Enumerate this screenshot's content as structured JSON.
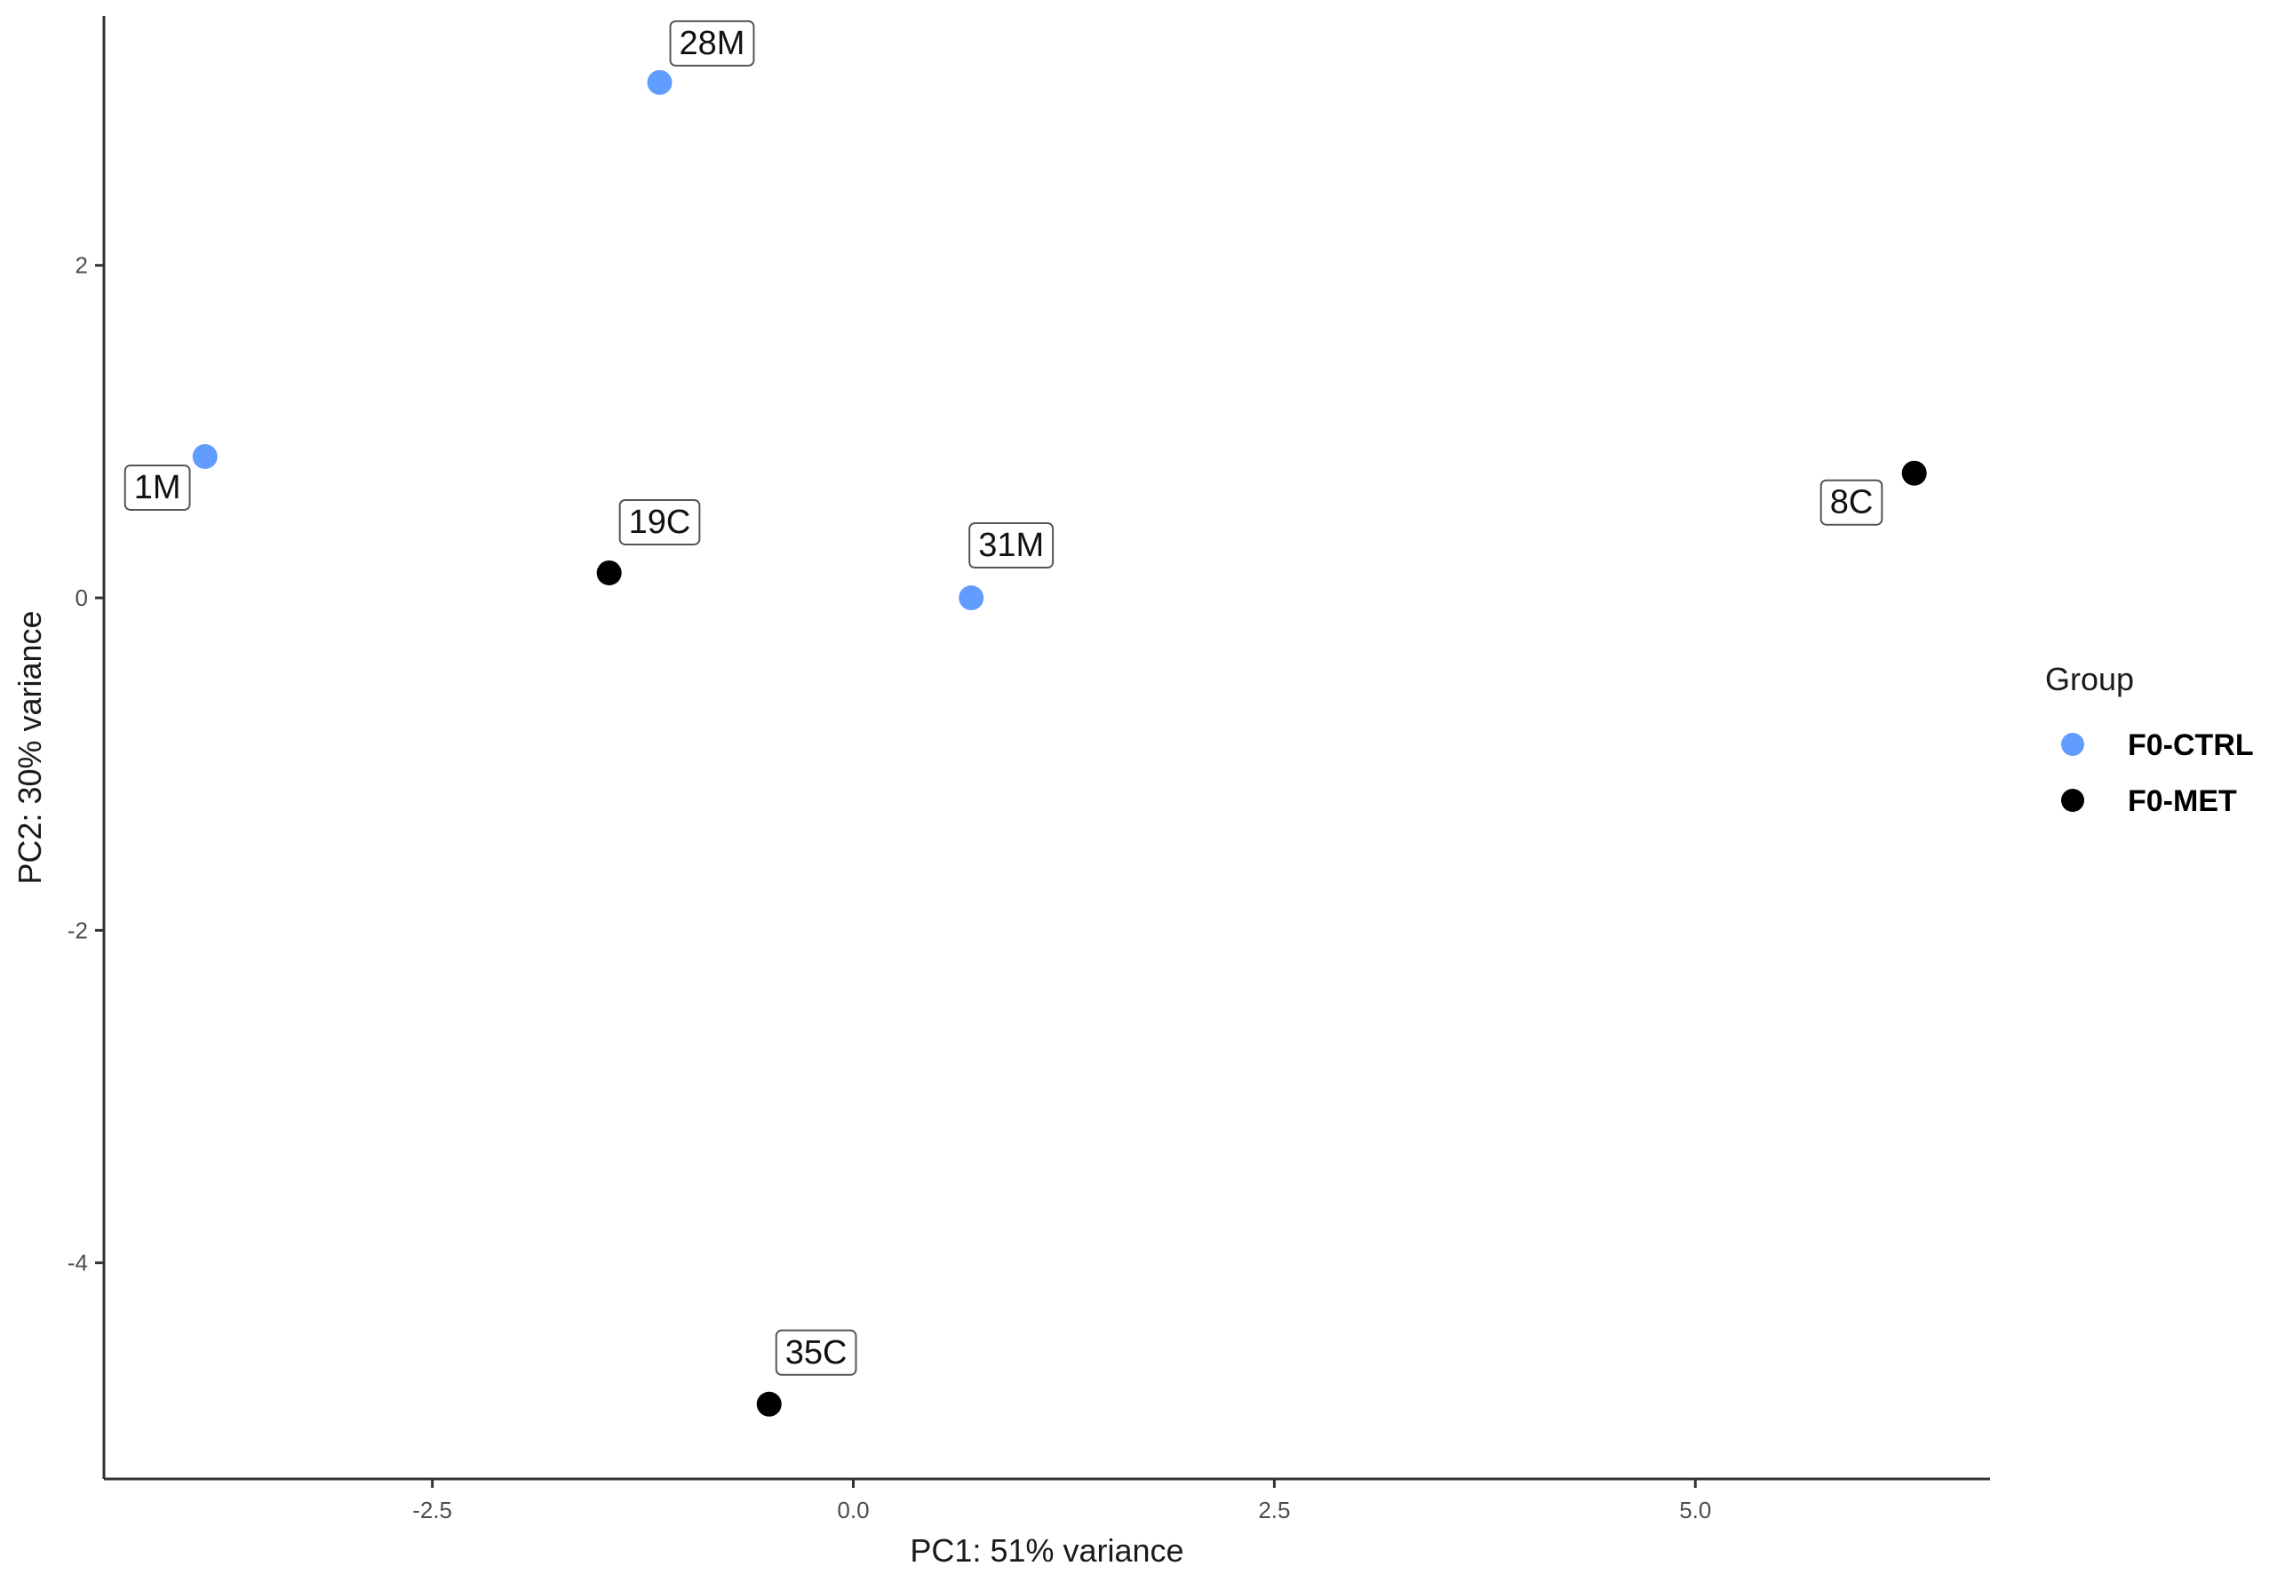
{
  "chart_data": {
    "type": "scatter",
    "xlabel": "PC1: 51% variance",
    "ylabel": "PC2: 30% variance",
    "xlim": [
      -4.45,
      6.75
    ],
    "ylim": [
      -5.3,
      3.5
    ],
    "x_ticks": [
      -2.5,
      0.0,
      2.5,
      5.0
    ],
    "x_tick_labels": [
      "-2.5",
      "0.0",
      "2.5",
      "5.0"
    ],
    "y_ticks": [
      -4,
      -2,
      0,
      2
    ],
    "y_tick_labels": [
      "-4",
      "-2",
      "0",
      "2"
    ],
    "grid": false,
    "legend": {
      "title": "Group",
      "position": "right",
      "entries": [
        {
          "name": "F0-CTRL",
          "color": "#619CFF"
        },
        {
          "name": "F0-MET",
          "color": "#000000"
        }
      ]
    },
    "series": [
      {
        "name": "F0-CTRL",
        "color": "#619CFF",
        "points": [
          {
            "label": "28M",
            "x": -1.15,
            "y": 3.1
          },
          {
            "label": "1M",
            "x": -3.85,
            "y": 0.85
          },
          {
            "label": "31M",
            "x": 0.7,
            "y": 0.0
          }
        ]
      },
      {
        "name": "F0-MET",
        "color": "#000000",
        "points": [
          {
            "label": "19C",
            "x": -1.45,
            "y": 0.15
          },
          {
            "label": "8C",
            "x": 6.3,
            "y": 0.75
          },
          {
            "label": "35C",
            "x": -0.5,
            "y": -4.85
          }
        ]
      }
    ]
  }
}
